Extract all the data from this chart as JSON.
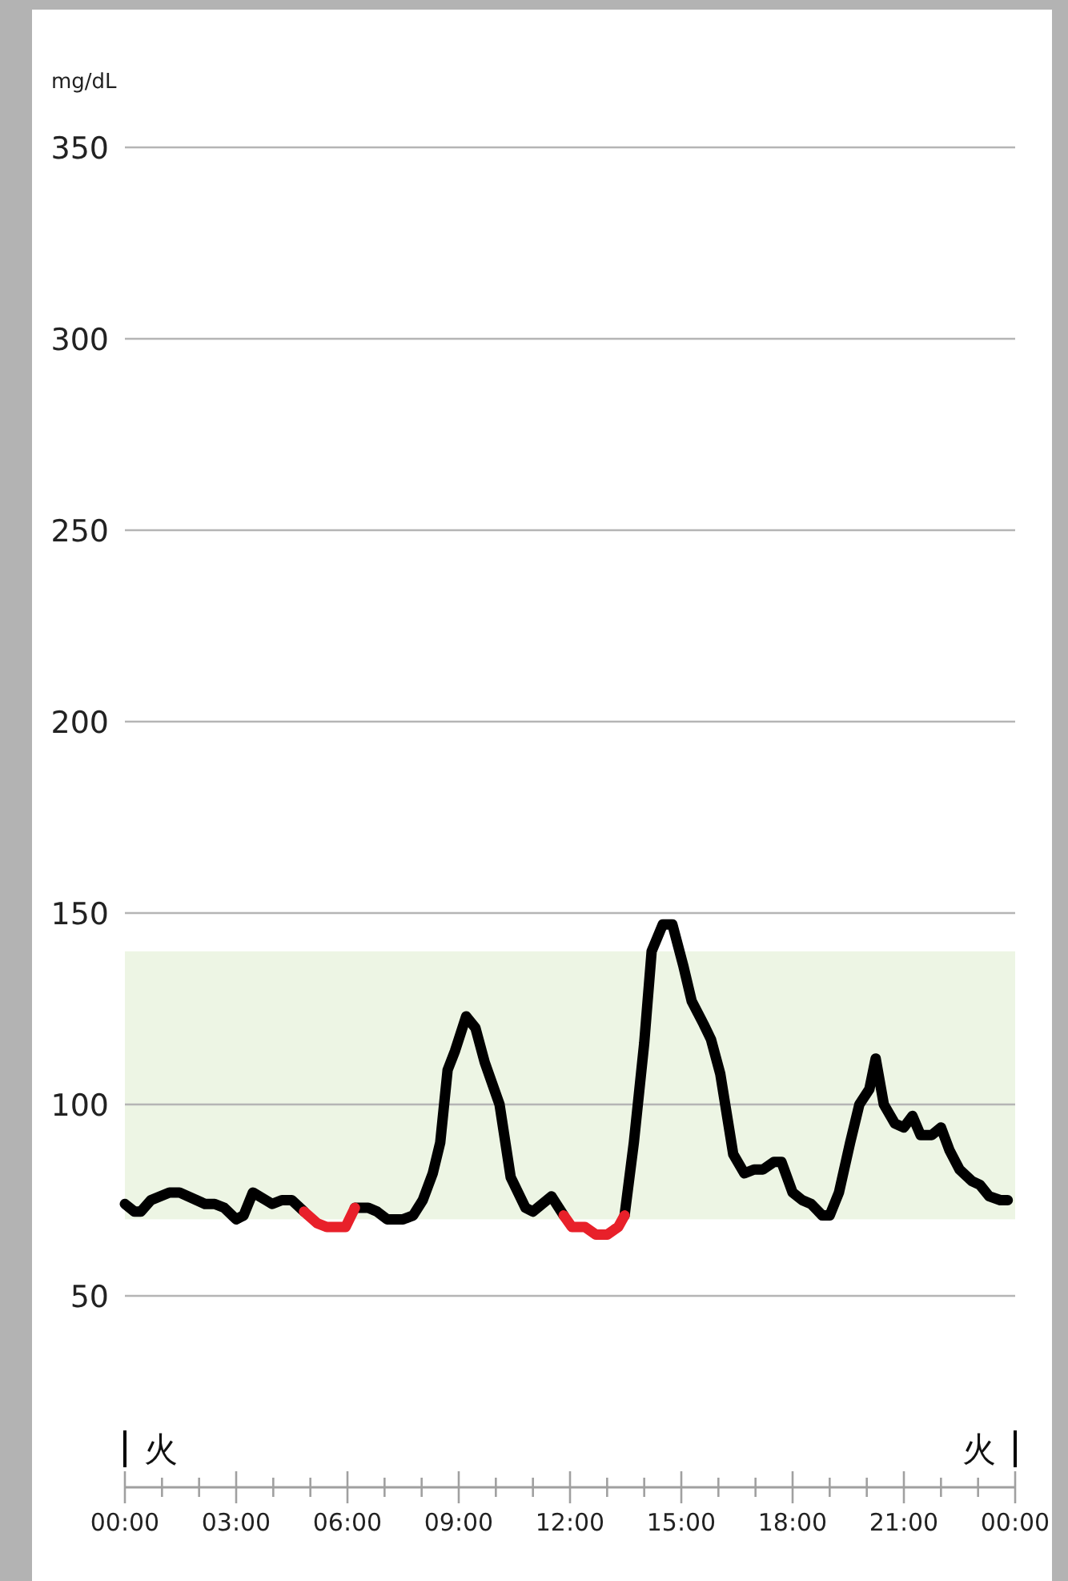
{
  "chart_data": {
    "type": "line",
    "ylabel": "mg/dL",
    "x": [
      0,
      0.26,
      0.43,
      0.7,
      1.2,
      1.47,
      2.16,
      2.42,
      2.68,
      3.0,
      3.2,
      3.45,
      3.8,
      3.97,
      4.23,
      4.5,
      4.83,
      5.18,
      5.44,
      5.95,
      6.2,
      6.56,
      6.8,
      7.07,
      7.5,
      7.77,
      8.03,
      8.3,
      8.5,
      8.7,
      8.9,
      9.2,
      9.45,
      9.7,
      10.1,
      10.4,
      10.8,
      11.0,
      11.5,
      11.83,
      12.05,
      12.4,
      12.7,
      13.0,
      13.3,
      13.47,
      13.72,
      14.0,
      14.2,
      14.5,
      14.76,
      15.06,
      15.28,
      15.6,
      15.8,
      16.05,
      16.4,
      16.7,
      16.96,
      17.2,
      17.5,
      17.7,
      18.0,
      18.26,
      18.5,
      18.8,
      19.0,
      19.25,
      19.55,
      19.8,
      20.07,
      20.24,
      20.46,
      20.76,
      21.0,
      21.23,
      21.45,
      21.75,
      22.0,
      22.23,
      22.5,
      22.83,
      23.05,
      23.3,
      23.6,
      23.8
    ],
    "series": [
      {
        "color": "#000000",
        "values": [
          74,
          72,
          72,
          75,
          77,
          77,
          74,
          74,
          73,
          70,
          71,
          77,
          75,
          74,
          75,
          75,
          72,
          null,
          null,
          null,
          73,
          73,
          72,
          70,
          70,
          71,
          75,
          82,
          90,
          109,
          114,
          123,
          120,
          111,
          100,
          81,
          73,
          72,
          76,
          71,
          null,
          null,
          null,
          null,
          null,
          71,
          90,
          116,
          140,
          147,
          147,
          136,
          127,
          121,
          117,
          108,
          87,
          82,
          83,
          83,
          85,
          85,
          77,
          75,
          74,
          71,
          71,
          77,
          90,
          100,
          104,
          112,
          100,
          95,
          94,
          97,
          92,
          92,
          94,
          88,
          83,
          80,
          79,
          76,
          75,
          75
        ]
      },
      {
        "color": "#e8202a",
        "values": [
          null,
          null,
          null,
          null,
          null,
          null,
          null,
          null,
          null,
          null,
          null,
          null,
          null,
          null,
          null,
          null,
          72,
          69,
          68,
          68,
          73,
          null,
          null,
          null,
          null,
          null,
          null,
          null,
          null,
          null,
          null,
          null,
          null,
          null,
          null,
          null,
          null,
          null,
          null,
          71,
          68,
          68,
          66,
          66,
          68,
          71,
          null,
          null,
          null,
          null,
          null,
          null,
          null,
          null,
          null,
          null,
          null,
          null,
          null,
          null,
          null,
          null,
          null,
          null,
          null,
          null,
          null,
          null,
          null,
          null,
          null,
          null,
          null,
          null,
          null,
          null,
          null,
          null,
          null,
          null,
          null,
          null,
          null,
          null,
          null,
          null
        ]
      }
    ],
    "xlim": [
      0,
      24
    ],
    "ylim": [
      0,
      350
    ],
    "yticks": [
      50,
      100,
      150,
      200,
      250,
      300,
      350
    ],
    "xticks": [
      {
        "value": 0,
        "label": "00:00"
      },
      {
        "value": 1,
        "label": null
      },
      {
        "value": 2,
        "label": null
      },
      {
        "value": 3,
        "label": "03:00"
      },
      {
        "value": 4,
        "label": null
      },
      {
        "value": 5,
        "label": null
      },
      {
        "value": 6,
        "label": "06:00"
      },
      {
        "value": 7,
        "label": null
      },
      {
        "value": 8,
        "label": null
      },
      {
        "value": 9,
        "label": "09:00"
      },
      {
        "value": 10,
        "label": null
      },
      {
        "value": 11,
        "label": null
      },
      {
        "value": 12,
        "label": "12:00"
      },
      {
        "value": 13,
        "label": null
      },
      {
        "value": 14,
        "label": null
      },
      {
        "value": 15,
        "label": "15:00"
      },
      {
        "value": 16,
        "label": null
      },
      {
        "value": 17,
        "label": null
      },
      {
        "value": 18,
        "label": "18:00"
      },
      {
        "value": 19,
        "label": null
      },
      {
        "value": 20,
        "label": null
      },
      {
        "value": 21,
        "label": "21:00"
      },
      {
        "value": 22,
        "label": null
      },
      {
        "value": 23,
        "label": null
      },
      {
        "value": 24,
        "label": "00:00"
      }
    ],
    "bands": [
      {
        "axis": "y",
        "from": 70,
        "to": 140,
        "color": "#edf5e4"
      }
    ],
    "grid": "y",
    "marker": "none",
    "line_style": "solid",
    "annotations": [
      "火",
      "火"
    ]
  }
}
